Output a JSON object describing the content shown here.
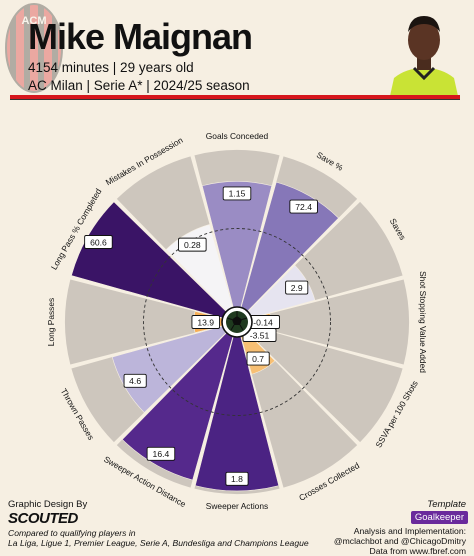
{
  "header": {
    "player_name": "Mike Maignan",
    "subtitle_line1": "4154 minutes | 29 years old",
    "subtitle_line2": "AC Milan | Serie A* | 2024/25 season",
    "club_logo_text": "ACM"
  },
  "chart_data": {
    "type": "pie",
    "subtype": "radial-percentile-pizza",
    "range": [
      0,
      100
    ],
    "metrics": [
      {
        "name": "Goals Conceded",
        "value": "1.15",
        "percentile": 80,
        "color": "#9a8cc4"
      },
      {
        "name": "Save %",
        "value": "72.4",
        "percentile": 83,
        "color": "#8677b8"
      },
      {
        "name": "Saves",
        "value": "2.9",
        "percentile": 42,
        "color": "#e6e4f0"
      },
      {
        "name": "Shot Stopping Value Added",
        "value": "-0.14",
        "percentile": 12,
        "color": "#f2a03a"
      },
      {
        "name": "SSVA per 100 Shots",
        "value": "-3.51",
        "percentile": 10,
        "color": "#e38b19"
      },
      {
        "name": "Crosses Collected",
        "value": "0.7",
        "percentile": 25,
        "color": "#f7bf73"
      },
      {
        "name": "Sweeper Actions",
        "value": "1.8",
        "percentile": 98,
        "color": "#4b2383"
      },
      {
        "name": "Sweeper Action Distance",
        "value": "16.4",
        "percentile": 95,
        "color": "#55298c"
      },
      {
        "name": "Thrown Passes",
        "value": "4.6",
        "percentile": 73,
        "color": "#bcb5da"
      },
      {
        "name": "Long Passes",
        "value": "13.9",
        "percentile": 18,
        "color": "#f6ae55"
      },
      {
        "name": "Long Pass % Completed",
        "value": "60.6",
        "percentile": 100,
        "color": "#3a1466"
      },
      {
        "name": "Mistakes In Possession",
        "value": "0.28",
        "percentile": 55,
        "color": "#f5f4f6"
      }
    ],
    "reference_ring_percentile": 50,
    "slice_background": "#cdc6bd",
    "center_icon": "soccer-ball-icon"
  },
  "footer": {
    "graphic_design_by": "Graphic Design By",
    "brand": "SCOUTED",
    "comparison_line1": "Compared to qualifying players in",
    "comparison_line2": "La Liga, Ligue 1, Premier League, Serie A, Bundesliga and Champions League",
    "template_label": "Template",
    "template_value": "Goalkeeper",
    "credit_line1": "Analysis and Implementation:",
    "credit_line2": "@mclachbot and @ChicagoDmitry",
    "credit_line3": "Data from www.fbref.com"
  },
  "colors": {
    "background": "#f6efe2",
    "accent_red": "#d6161c",
    "template_badge": "#6a2a9c"
  }
}
